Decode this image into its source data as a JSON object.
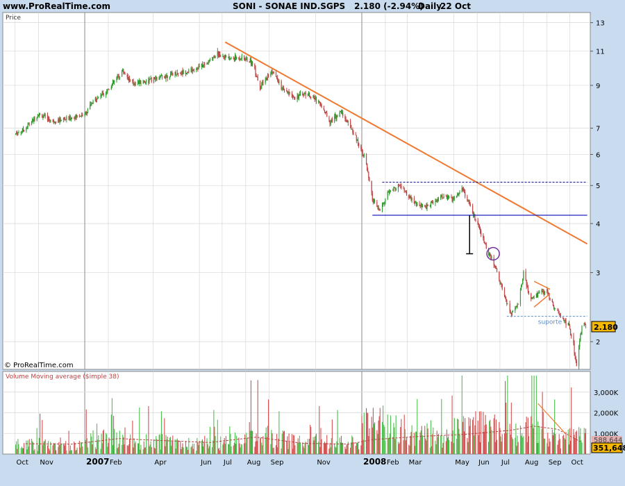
{
  "header": {
    "site": "www.ProRealTime.com",
    "instrument": "SONI - SONAE IND.SGPS",
    "quote": "2.180 (-2.94%)",
    "period": "Daily",
    "date": "22 Oct"
  },
  "chart_data": [
    {
      "type": "candlestick",
      "title": "SONI - SONAE IND.SGPS",
      "panel_label": "Price",
      "watermark": "© ProRealTime.com",
      "y_scale": "log",
      "ylim": [
        1.7,
        13.8
      ],
      "y_ticks": [
        2,
        3,
        4,
        5,
        6,
        7,
        9,
        11,
        13
      ],
      "last_price": 2.18,
      "last_price_label": "2.180",
      "grid": true,
      "x_ticks": [
        "Oct",
        "Nov",
        "2007",
        "Feb",
        "Apr",
        "Jun",
        "Jul",
        "Aug",
        "Sep",
        "Nov",
        "2008",
        "Feb",
        "Mar",
        "May",
        "Jun",
        "Jul",
        "Aug",
        "Sep",
        "Oct"
      ],
      "series": [
        {
          "name": "Price (approx. close)",
          "values": [
            [
              "2006-10-01",
              6.75
            ],
            [
              "2006-10-15",
              7.0
            ],
            [
              "2006-11-01",
              7.6
            ],
            [
              "2006-11-20",
              7.3
            ],
            [
              "2006-12-10",
              7.4
            ],
            [
              "2007-01-01",
              7.6
            ],
            [
              "2007-01-15",
              8.3
            ],
            [
              "2007-02-01",
              8.8
            ],
            [
              "2007-02-20",
              9.8
            ],
            [
              "2007-03-05",
              9.1
            ],
            [
              "2007-04-01",
              9.3
            ],
            [
              "2007-04-25",
              9.6
            ],
            [
              "2007-05-20",
              9.8
            ],
            [
              "2007-06-10",
              10.2
            ],
            [
              "2007-06-25",
              10.9
            ],
            [
              "2007-07-10",
              10.5
            ],
            [
              "2007-07-25",
              10.6
            ],
            [
              "2007-08-10",
              10.3
            ],
            [
              "2007-08-20",
              8.9
            ],
            [
              "2007-09-05",
              9.8
            ],
            [
              "2007-09-20",
              8.7
            ],
            [
              "2007-10-05",
              8.4
            ],
            [
              "2007-10-20",
              8.6
            ],
            [
              "2007-11-05",
              8.2
            ],
            [
              "2007-11-20",
              7.3
            ],
            [
              "2007-12-05",
              7.7
            ],
            [
              "2007-12-20",
              6.9
            ],
            [
              "2008-01-05",
              5.9
            ],
            [
              "2008-01-15",
              4.6
            ],
            [
              "2008-01-25",
              4.3
            ],
            [
              "2008-02-05",
              4.8
            ],
            [
              "2008-02-20",
              5.0
            ],
            [
              "2008-03-10",
              4.5
            ],
            [
              "2008-03-25",
              4.4
            ],
            [
              "2008-04-15",
              4.7
            ],
            [
              "2008-05-01",
              4.6
            ],
            [
              "2008-05-12",
              4.95
            ],
            [
              "2008-05-25",
              4.3
            ],
            [
              "2008-06-05",
              3.8
            ],
            [
              "2008-06-15",
              3.4
            ],
            [
              "2008-06-25",
              3.1
            ],
            [
              "2008-07-05",
              2.7
            ],
            [
              "2008-07-15",
              2.35
            ],
            [
              "2008-07-25",
              2.5
            ],
            [
              "2008-08-01",
              3.0
            ],
            [
              "2008-08-10",
              2.55
            ],
            [
              "2008-08-20",
              2.65
            ],
            [
              "2008-09-01",
              2.7
            ],
            [
              "2008-09-10",
              2.45
            ],
            [
              "2008-09-20",
              2.3
            ],
            [
              "2008-09-30",
              2.2
            ],
            [
              "2008-10-06",
              1.95
            ],
            [
              "2008-10-10",
              1.75
            ],
            [
              "2008-10-14",
              2.0
            ],
            [
              "2008-10-18",
              2.25
            ],
            [
              "2008-10-22",
              2.18
            ]
          ]
        }
      ],
      "annotations": [
        {
          "kind": "trendline",
          "color": "#f07830",
          "from": [
            "2007-07-05",
            11.6
          ],
          "to": [
            "2008-10-24",
            3.55
          ]
        },
        {
          "kind": "hline",
          "color": "#2020c0",
          "y": 4.2,
          "from": "2008-01-15",
          "to": "2008-10-24"
        },
        {
          "kind": "dashed_hline",
          "color": "#000080",
          "y": 5.1,
          "from": "2008-01-28",
          "to": "2008-10-24"
        },
        {
          "kind": "dashed_hline",
          "color": "#5b8fc9",
          "y": 2.32,
          "from": "2008-07-10",
          "to": "2008-10-24",
          "label": "suporte"
        },
        {
          "kind": "vmarker",
          "color": "#000000",
          "x": "2008-05-22",
          "y_from": 4.2,
          "y_to": 3.35
        },
        {
          "kind": "circle",
          "color": "#7030a0",
          "x": "2008-06-22",
          "y": 3.35
        },
        {
          "kind": "triangle_upper",
          "color": "#f07830",
          "from": [
            "2008-08-15",
            2.85
          ],
          "to": [
            "2008-09-05",
            2.72
          ]
        },
        {
          "kind": "triangle_lower",
          "color": "#f07830",
          "from": [
            "2008-08-15",
            2.45
          ],
          "to": [
            "2008-09-05",
            2.65
          ]
        }
      ]
    },
    {
      "type": "bar",
      "title": "Volume Moving average ($imple 38)",
      "ylim": [
        0,
        4000000
      ],
      "y_ticks": [
        1000000,
        2000000,
        3000000
      ],
      "y_tick_labels": [
        "1,000K",
        "2,000K",
        "3,000K"
      ],
      "last_volume_label": "351,648",
      "ma_label": "588,644",
      "series": [
        {
          "name": "Volume (approx. by month)",
          "values": [
            [
              "2006-10",
              500000
            ],
            [
              "2006-11",
              550000
            ],
            [
              "2006-12",
              450000
            ],
            [
              "2007-01",
              800000
            ],
            [
              "2007-02",
              900000
            ],
            [
              "2007-03",
              650000
            ],
            [
              "2007-04",
              700000
            ],
            [
              "2007-05",
              550000
            ],
            [
              "2007-06",
              600000
            ],
            [
              "2007-07",
              700000
            ],
            [
              "2007-08",
              1100000
            ],
            [
              "2007-09",
              800000
            ],
            [
              "2007-10",
              650000
            ],
            [
              "2007-11",
              700000
            ],
            [
              "2007-12",
              600000
            ],
            [
              "2008-01",
              1600000
            ],
            [
              "2008-02",
              1300000
            ],
            [
              "2008-03",
              1000000
            ],
            [
              "2008-04",
              900000
            ],
            [
              "2008-05",
              1500000
            ],
            [
              "2008-06",
              1400000
            ],
            [
              "2008-07",
              1200000
            ],
            [
              "2008-08",
              1400000
            ],
            [
              "2008-09",
              800000
            ],
            [
              "2008-10",
              900000
            ]
          ]
        },
        {
          "name": "Volume MA",
          "values": [
            [
              "2006-10",
              500000
            ],
            [
              "2006-12",
              480000
            ],
            [
              "2007-02",
              750000
            ],
            [
              "2007-04",
              650000
            ],
            [
              "2007-06",
              560000
            ],
            [
              "2007-08",
              820000
            ],
            [
              "2007-10",
              520000
            ],
            [
              "2007-12",
              480000
            ],
            [
              "2008-01",
              700000
            ],
            [
              "2008-03",
              850000
            ],
            [
              "2008-05",
              950000
            ],
            [
              "2008-07",
              1150000
            ],
            [
              "2008-08",
              1350000
            ],
            [
              "2008-09",
              1200000
            ],
            [
              "2008-10",
              600000
            ]
          ]
        }
      ]
    }
  ],
  "colors": {
    "background": "#c9dcef",
    "panel": "#ffffff",
    "grid": "#d7d7d7",
    "up_candle": "#2e9d2e",
    "down_candle": "#c24444",
    "volume_up": "#4cc04c",
    "volume_down": "#d45050",
    "volume_ma": "#b04040",
    "price_badge": "#f6b800"
  }
}
